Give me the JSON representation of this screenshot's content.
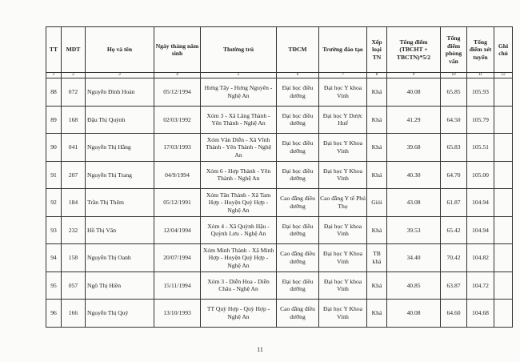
{
  "headers": [
    "TT",
    "MDT",
    "Họ và tên",
    "Ngày tháng năm sinh",
    "Thường trú",
    "TĐCM",
    "Trường đào tạo",
    "Xếp loại TN",
    "Tổng điểm (TBCHT + TBCTN)*5/2",
    "Tổng điểm phỏng vấn",
    "Tổng điểm xét tuyển",
    "Ghi chú"
  ],
  "column_numbers": [
    "1",
    "2",
    "3",
    "4",
    "5",
    "6",
    "7",
    "8",
    "9",
    "10",
    "11",
    "12"
  ],
  "rows": [
    {
      "tt": "88",
      "mdt": "072",
      "name": "Nguyễn Đình Hoàn",
      "dob": "05/12/1994",
      "address": "Hưng Tây - Hưng Nguyên - Nghệ An",
      "tdcm": "Đại học điều dưỡng",
      "school": "Đại học Y khoa Vinh",
      "rank": "Khá",
      "score": "40.08",
      "interview": "65.85",
      "total": "105.93",
      "note": ""
    },
    {
      "tt": "89",
      "mdt": "168",
      "name": "Đậu Thị Quỳnh",
      "dob": "02/03/1992",
      "address": "Xóm 3 - Xã Lăng Thành - Yên Thành - Nghệ An",
      "tdcm": "Đại học điều dưỡng",
      "school": "Đại học Y Dược Huế",
      "rank": "Khá",
      "score": "41.29",
      "interview": "64.50",
      "total": "105.79",
      "note": ""
    },
    {
      "tt": "90",
      "mdt": "041",
      "name": "Nguyễn Thị Hằng",
      "dob": "17/03/1993",
      "address": "Xóm Văn Diễn - Xã Vĩnh Thành - Yên Thành - Nghệ An",
      "tdcm": "Đại học điều dưỡng",
      "school": "Đại học Y Khoa Vinh",
      "rank": "Khá",
      "score": "39.68",
      "interview": "65.83",
      "total": "105.51",
      "note": ""
    },
    {
      "tt": "91",
      "mdt": "207",
      "name": "Nguyễn Thị Trang",
      "dob": "04/9/1994",
      "address": "Xóm 6 - Hợp Thành - Yên Thành - Nghệ An",
      "tdcm": "Đại học điều dưỡng",
      "school": "Đại học Y Khoa Vinh",
      "rank": "Khá",
      "score": "40.30",
      "interview": "64.70",
      "total": "105.00",
      "note": ""
    },
    {
      "tt": "92",
      "mdt": "184",
      "name": "Trần Thị Thêm",
      "dob": "05/12/1991",
      "address": "Xóm Tân Thành - Xã Tam Hợp - Huyện Quỳ Hợp - Nghệ An",
      "tdcm": "Cao đẳng điều dưỡng",
      "school": "Cao đẳng Y tế Phú Thọ",
      "rank": "Giỏi",
      "score": "43.08",
      "interview": "61.87",
      "total": "104.94",
      "note": ""
    },
    {
      "tt": "93",
      "mdt": "232",
      "name": "Hồ Thị Vân",
      "dob": "12/04/1994",
      "address": "Xóm 4 - Xã Quỳnh Hậu - Quỳnh Lưu - Nghệ An",
      "tdcm": "Đại học điều dưỡng",
      "school": "Đại học Y khoa Vinh",
      "rank": "Khá",
      "score": "39.53",
      "interview": "65.42",
      "total": "104.94",
      "note": ""
    },
    {
      "tt": "94",
      "mdt": "158",
      "name": "Nguyễn Thị Oanh",
      "dob": "20/07/1994",
      "address": "Xóm Minh Thành - Xã Minh Hợp - Huyện Quỳ Hợp - Nghệ An",
      "tdcm": "Cao đẳng điều dưỡng",
      "school": "Đại học Y Khoa Vinh",
      "rank": "TB khá",
      "score": "34.40",
      "interview": "70.42",
      "total": "104.82",
      "note": ""
    },
    {
      "tt": "95",
      "mdt": "057",
      "name": "Ngô Thị Hiền",
      "dob": "15/11/1994",
      "address": "Xóm 3 - Diễn Hoa - Diễn Châu - Nghệ An",
      "tdcm": "Đại học điều dưỡng",
      "school": "Đại học Y khoa Vinh",
      "rank": "Khá",
      "score": "40.85",
      "interview": "63.87",
      "total": "104.72",
      "note": ""
    },
    {
      "tt": "96",
      "mdt": "166",
      "name": "Nguyễn Thị Quý",
      "dob": "13/10/1993",
      "address": "TT Quỳ Hợp - Quỳ Hợp - Nghệ An",
      "tdcm": "Cao đẳng điều dưỡng",
      "school": "Đại học Y Khoa Vinh",
      "rank": "Khá",
      "score": "40.08",
      "interview": "64.60",
      "total": "104.68",
      "note": ""
    }
  ],
  "page_number": "11"
}
